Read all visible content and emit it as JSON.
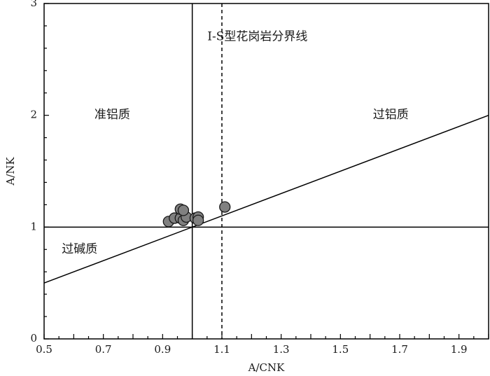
{
  "chart_data": {
    "type": "scatter",
    "title": "",
    "xlabel": "A/CNK",
    "ylabel": "A/NK",
    "xlim": [
      0.5,
      2.0
    ],
    "ylim": [
      0,
      3
    ],
    "x_ticks": [
      "0.5",
      "0.7",
      "0.9",
      "1.1",
      "1.3",
      "1.5",
      "1.7",
      "1.9"
    ],
    "y_ticks": [
      "0",
      "1",
      "2",
      "3"
    ],
    "grid": false,
    "points": [
      {
        "x": 0.92,
        "y": 1.05
      },
      {
        "x": 0.94,
        "y": 1.08
      },
      {
        "x": 0.96,
        "y": 1.08
      },
      {
        "x": 0.97,
        "y": 1.06
      },
      {
        "x": 0.98,
        "y": 1.09
      },
      {
        "x": 0.96,
        "y": 1.16
      },
      {
        "x": 0.97,
        "y": 1.15
      },
      {
        "x": 1.01,
        "y": 1.08
      },
      {
        "x": 1.02,
        "y": 1.09
      },
      {
        "x": 1.02,
        "y": 1.06
      },
      {
        "x": 1.11,
        "y": 1.18
      }
    ],
    "reference_lines": [
      {
        "kind": "vertical",
        "x": 1.0,
        "style": "solid"
      },
      {
        "kind": "vertical",
        "x": 1.1,
        "style": "dashed"
      },
      {
        "kind": "horizontal",
        "y": 1.0,
        "style": "solid"
      },
      {
        "kind": "diagonal",
        "from": [
          0.5,
          0.5
        ],
        "to": [
          2.0,
          2.0
        ],
        "style": "solid"
      }
    ],
    "annotations": [
      {
        "text": "I-S型花岗岩分界线",
        "x": 1.22,
        "y": 2.7
      },
      {
        "text": "准铝质",
        "x": 0.73,
        "y": 2.0
      },
      {
        "text": "过铝质",
        "x": 1.67,
        "y": 2.0
      },
      {
        "text": "过碱质",
        "x": 0.62,
        "y": 0.8
      }
    ],
    "colors": {
      "marker_fill": "#808080",
      "marker_stroke": "#1a1a1a",
      "line": "#000000"
    }
  }
}
